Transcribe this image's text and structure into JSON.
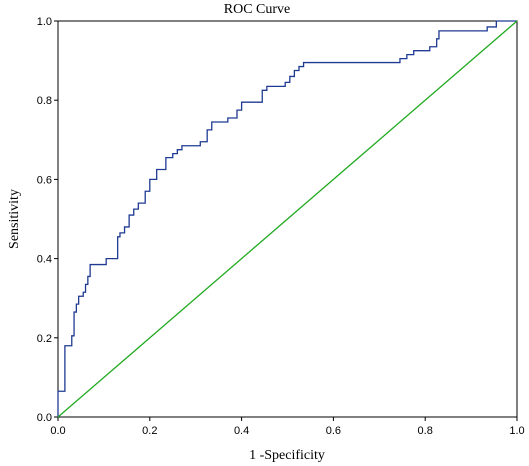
{
  "chart_data": {
    "type": "line",
    "title": "ROC Curve",
    "xlabel": "1 -Specificity",
    "ylabel": "Sensitivity",
    "xlim": [
      0,
      1
    ],
    "ylim": [
      0,
      1
    ],
    "x_ticks": [
      "0.0",
      "0.2",
      "0.4",
      "0.6",
      "0.8",
      "1.0"
    ],
    "y_ticks": [
      "0.0",
      "0.2",
      "0.4",
      "0.6",
      "0.8",
      "1.0"
    ],
    "grid": false,
    "legend": "none",
    "series": [
      {
        "color": "#1f3a93",
        "points": [
          [
            0.0,
            0.0
          ],
          [
            0.0,
            0.065
          ],
          [
            0.015,
            0.065
          ],
          [
            0.015,
            0.18
          ],
          [
            0.03,
            0.18
          ],
          [
            0.03,
            0.205
          ],
          [
            0.035,
            0.205
          ],
          [
            0.035,
            0.265
          ],
          [
            0.04,
            0.265
          ],
          [
            0.04,
            0.285
          ],
          [
            0.045,
            0.285
          ],
          [
            0.045,
            0.305
          ],
          [
            0.055,
            0.305
          ],
          [
            0.055,
            0.315
          ],
          [
            0.06,
            0.315
          ],
          [
            0.06,
            0.335
          ],
          [
            0.065,
            0.335
          ],
          [
            0.065,
            0.355
          ],
          [
            0.07,
            0.355
          ],
          [
            0.07,
            0.385
          ],
          [
            0.105,
            0.385
          ],
          [
            0.105,
            0.4
          ],
          [
            0.13,
            0.4
          ],
          [
            0.13,
            0.455
          ],
          [
            0.135,
            0.455
          ],
          [
            0.135,
            0.465
          ],
          [
            0.145,
            0.465
          ],
          [
            0.145,
            0.48
          ],
          [
            0.155,
            0.48
          ],
          [
            0.155,
            0.51
          ],
          [
            0.165,
            0.51
          ],
          [
            0.165,
            0.525
          ],
          [
            0.175,
            0.525
          ],
          [
            0.175,
            0.54
          ],
          [
            0.19,
            0.54
          ],
          [
            0.19,
            0.57
          ],
          [
            0.2,
            0.57
          ],
          [
            0.2,
            0.6
          ],
          [
            0.215,
            0.6
          ],
          [
            0.215,
            0.625
          ],
          [
            0.235,
            0.625
          ],
          [
            0.235,
            0.655
          ],
          [
            0.25,
            0.655
          ],
          [
            0.25,
            0.665
          ],
          [
            0.26,
            0.665
          ],
          [
            0.26,
            0.675
          ],
          [
            0.27,
            0.675
          ],
          [
            0.27,
            0.685
          ],
          [
            0.31,
            0.685
          ],
          [
            0.31,
            0.695
          ],
          [
            0.325,
            0.695
          ],
          [
            0.325,
            0.725
          ],
          [
            0.335,
            0.725
          ],
          [
            0.335,
            0.745
          ],
          [
            0.37,
            0.745
          ],
          [
            0.37,
            0.755
          ],
          [
            0.39,
            0.755
          ],
          [
            0.39,
            0.775
          ],
          [
            0.4,
            0.775
          ],
          [
            0.4,
            0.795
          ],
          [
            0.445,
            0.795
          ],
          [
            0.445,
            0.825
          ],
          [
            0.455,
            0.825
          ],
          [
            0.455,
            0.835
          ],
          [
            0.495,
            0.835
          ],
          [
            0.495,
            0.845
          ],
          [
            0.505,
            0.845
          ],
          [
            0.505,
            0.86
          ],
          [
            0.515,
            0.86
          ],
          [
            0.515,
            0.875
          ],
          [
            0.525,
            0.875
          ],
          [
            0.525,
            0.885
          ],
          [
            0.535,
            0.885
          ],
          [
            0.535,
            0.895
          ],
          [
            0.745,
            0.895
          ],
          [
            0.745,
            0.905
          ],
          [
            0.76,
            0.905
          ],
          [
            0.76,
            0.915
          ],
          [
            0.775,
            0.915
          ],
          [
            0.775,
            0.925
          ],
          [
            0.81,
            0.925
          ],
          [
            0.81,
            0.935
          ],
          [
            0.825,
            0.935
          ],
          [
            0.825,
            0.955
          ],
          [
            0.83,
            0.955
          ],
          [
            0.83,
            0.975
          ],
          [
            0.935,
            0.975
          ],
          [
            0.935,
            0.985
          ],
          [
            0.955,
            0.985
          ],
          [
            0.955,
            1.0
          ],
          [
            1.0,
            1.0
          ]
        ]
      },
      {
        "color": "#22aa22",
        "points": [
          [
            0,
            0
          ],
          [
            1,
            1
          ]
        ]
      }
    ]
  }
}
